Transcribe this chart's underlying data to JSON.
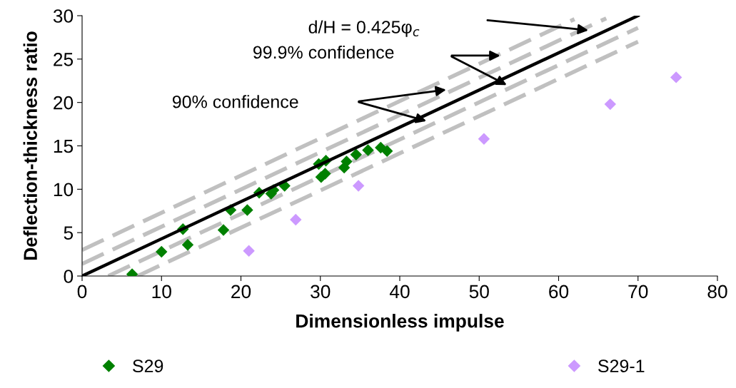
{
  "chart_data": {
    "type": "scatter",
    "xlabel": "Dimensionless impulse",
    "ylabel": "Deflection-thickness ratio",
    "xlim": [
      0,
      80
    ],
    "xticks": [
      0,
      10,
      20,
      30,
      40,
      50,
      60,
      70,
      80
    ],
    "ylim": [
      0,
      30
    ],
    "yticks": [
      0,
      5,
      10,
      15,
      20,
      25,
      30
    ],
    "grid": false,
    "legend": "bottom",
    "series": [
      {
        "name": "S29",
        "marker": "diamond",
        "color": "#008000",
        "x": [
          6.3,
          10.0,
          12.7,
          13.3,
          17.8,
          18.7,
          20.8,
          22.3,
          23.8,
          24.1,
          25.5,
          29.8,
          30.1,
          30.6,
          30.7,
          33.0,
          33.3,
          34.5,
          36.0,
          37.6,
          38.4
        ],
        "values": [
          0.2,
          2.8,
          5.4,
          3.6,
          5.3,
          7.6,
          7.6,
          9.6,
          9.5,
          9.9,
          10.4,
          12.9,
          11.4,
          11.8,
          13.3,
          12.5,
          13.2,
          14.0,
          14.5,
          14.8,
          14.4
        ]
      },
      {
        "name": "S29-1",
        "marker": "diamond",
        "color": "#cc99ff",
        "x": [
          21.0,
          26.9,
          34.8,
          50.6,
          66.5,
          74.8
        ],
        "values": [
          2.9,
          6.5,
          10.4,
          15.8,
          19.8,
          22.9
        ]
      },
      {
        "type": "line",
        "line_style": "solid",
        "marker": "none",
        "color": "#000000",
        "x": [
          0,
          70
        ],
        "values": [
          0,
          30
        ]
      },
      {
        "type": "line",
        "line_style": "dashed",
        "marker": "none",
        "color": "#c0c0c0",
        "x": [
          0,
          66
        ],
        "values": [
          1.4,
          29.7
        ]
      },
      {
        "type": "line",
        "line_style": "dashed",
        "marker": "none",
        "color": "#c0c0c0",
        "x": [
          3.3,
          70
        ],
        "values": [
          0,
          28.6
        ]
      },
      {
        "type": "line",
        "line_style": "dashed",
        "marker": "none",
        "color": "#c0c0c0",
        "x": [
          0,
          62
        ],
        "values": [
          3.0,
          29.6
        ]
      },
      {
        "type": "line",
        "line_style": "dashed",
        "marker": "none",
        "color": "#c0c0c0",
        "x": [
          7.0,
          70
        ],
        "values": [
          0,
          27.0
        ]
      }
    ],
    "annotations": [
      "d/H = 0.425φ$_{c}$",
      "99.9% confidence",
      "90% confidence"
    ]
  }
}
